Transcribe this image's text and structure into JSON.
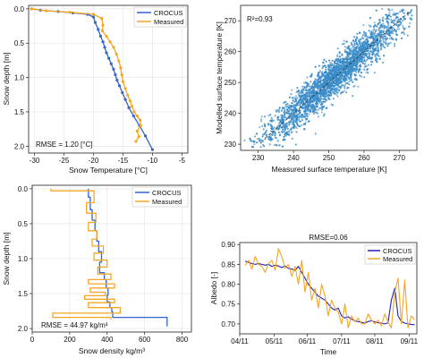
{
  "colors": {
    "crocus": "#3366cc",
    "measured": "#f5a623",
    "scatter": "#3a8cc8",
    "albedo_crocus": "#1f1fb4",
    "albedo_measured": "#f5a623"
  },
  "chart_data": [
    {
      "id": "temp_profile",
      "type": "line",
      "xlabel": "Snow Temperature [°C]",
      "ylabel": "Snow depth [m]",
      "xlim": [
        -31,
        -4
      ],
      "ylim": [
        2.1,
        -0.05
      ],
      "xticks": [
        -30,
        -25,
        -20,
        -15,
        -10,
        -5
      ],
      "yticks": [
        0.0,
        0.5,
        1.0,
        1.5,
        2.0
      ],
      "ytick_labels": [
        "0.0",
        "0.5",
        "1.0",
        "1.5",
        "2.0"
      ],
      "legend": [
        "CROCUS",
        "Measured"
      ],
      "legend_position": "top-right",
      "annotation": "RMSE = 1.20 [°C]",
      "series": [
        {
          "name": "CROCUS",
          "x": [
            -30.5,
            -29,
            -26,
            -23.5,
            -21,
            -20,
            -19.7,
            -19.2,
            -18.8,
            -18.4,
            -18.1,
            -17.8,
            -17.4,
            -17.0,
            -16.6,
            -16.3,
            -16.0,
            -15.6,
            -15.1,
            -14.6,
            -14.0,
            -13.2,
            -12.2,
            -11.2,
            -10.0
          ],
          "y": [
            0.0,
            0.02,
            0.04,
            0.06,
            0.08,
            0.12,
            0.2,
            0.3,
            0.4,
            0.48,
            0.56,
            0.64,
            0.72,
            0.8,
            0.88,
            0.96,
            1.04,
            1.12,
            1.22,
            1.32,
            1.44,
            1.56,
            1.7,
            1.85,
            2.05
          ],
          "markers": true
        },
        {
          "name": "Measured",
          "x": [
            -30.5,
            -28,
            -24,
            -20,
            -18.6,
            -18.4,
            -18.5,
            -17.8,
            -17.2,
            -16.6,
            -16.1,
            -15.7,
            -15.4,
            -15.2,
            -15.0,
            -14.6,
            -14.2,
            -13.8,
            -13.5,
            -13.1,
            -12.6,
            -12.1,
            -12.0,
            -12.6,
            -12.3,
            -12.8
          ],
          "y": [
            0.0,
            0.03,
            0.05,
            0.08,
            0.14,
            0.24,
            0.32,
            0.4,
            0.48,
            0.56,
            0.66,
            0.76,
            0.86,
            0.96,
            1.06,
            1.16,
            1.26,
            1.34,
            1.42,
            1.5,
            1.56,
            1.62,
            1.7,
            1.78,
            1.86,
            1.93
          ],
          "markers": true
        }
      ]
    },
    {
      "id": "surface_scatter",
      "type": "scatter",
      "xlabel": "Measured surface temperature [K]",
      "ylabel": "Modelled surface temperature [K]",
      "xlim": [
        225,
        275
      ],
      "ylim": [
        228,
        275
      ],
      "xticks": [
        230,
        240,
        250,
        260,
        270
      ],
      "yticks": [
        230,
        240,
        250,
        260,
        270
      ],
      "annotation": "R²=0.93",
      "one_to_one_line": true,
      "point_cloud": {
        "n_points": 2600,
        "x_mean": 252,
        "x_sd": 10,
        "scatter_sd": 3.2
      }
    },
    {
      "id": "density_profile",
      "type": "line",
      "xlabel": "Snow density kg/m³",
      "ylabel": "Snow depth [m]",
      "xlim": [
        0,
        850
      ],
      "ylim": [
        2.05,
        -0.05
      ],
      "xticks": [
        0,
        200,
        400,
        600,
        800
      ],
      "yticks": [
        0.0,
        0.5,
        1.0,
        1.5,
        2.0
      ],
      "ytick_labels": [
        "0.0",
        "0.5",
        "1.0",
        "1.5",
        "2.0"
      ],
      "legend": [
        "CROCUS",
        "Measured"
      ],
      "legend_position": "top-right",
      "annotation": "RMSE = 44.97 kg/m³",
      "series": [
        {
          "name": "CROCUS",
          "x": [
            300,
            300,
            310,
            310,
            320,
            320,
            335,
            335,
            345,
            345,
            355,
            355,
            370,
            370,
            360,
            360,
            385,
            385,
            395,
            395,
            405,
            405,
            400,
            400,
            415,
            415,
            425,
            425,
            430,
            430,
            720,
            720
          ],
          "y": [
            0.0,
            0.12,
            0.12,
            0.3,
            0.3,
            0.45,
            0.45,
            0.6,
            0.6,
            0.75,
            0.75,
            0.9,
            0.9,
            1.05,
            1.05,
            1.2,
            1.2,
            1.3,
            1.3,
            1.42,
            1.42,
            1.52,
            1.52,
            1.62,
            1.62,
            1.7,
            1.7,
            1.76,
            1.76,
            1.84,
            1.84,
            1.97
          ]
        },
        {
          "name": "Measured",
          "x": [
            100,
            100,
            330,
            330,
            290,
            290,
            340,
            340,
            300,
            300,
            345,
            345,
            320,
            320,
            380,
            380,
            330,
            330,
            400,
            400,
            350,
            350,
            420,
            420,
            300,
            300,
            440,
            440,
            310,
            310,
            390,
            390,
            280,
            280,
            440,
            440,
            300,
            300,
            470,
            470,
            110,
            110,
            420,
            420
          ],
          "y": [
            0.0,
            0.03,
            0.03,
            0.2,
            0.2,
            0.35,
            0.35,
            0.48,
            0.48,
            0.6,
            0.6,
            0.72,
            0.72,
            0.82,
            0.82,
            0.92,
            0.92,
            1.02,
            1.02,
            1.12,
            1.12,
            1.22,
            1.22,
            1.3,
            1.3,
            1.36,
            1.36,
            1.42,
            1.42,
            1.48,
            1.48,
            1.53,
            1.53,
            1.58,
            1.58,
            1.63,
            1.63,
            1.7,
            1.7,
            1.78,
            1.78,
            1.84,
            1.84,
            1.87
          ]
        }
      ]
    },
    {
      "id": "albedo_timeseries",
      "type": "line",
      "title": "RMSE=0.06",
      "xlabel": "Time",
      "ylabel": "Albedo [-]",
      "xlim": [
        0,
        160
      ],
      "ylim": [
        0.675,
        0.905
      ],
      "xticks": [
        0,
        31,
        61,
        92,
        122,
        153
      ],
      "xtick_labels": [
        "04/11",
        "05/11",
        "06/11",
        "07/11",
        "08/11",
        "09/11"
      ],
      "yticks": [
        0.7,
        0.75,
        0.8,
        0.85,
        0.9
      ],
      "ytick_labels": [
        "0.70",
        "0.75",
        "0.80",
        "0.85",
        "0.90"
      ],
      "legend": [
        "CROCUS",
        "Measured"
      ],
      "legend_position": "top-right",
      "series": [
        {
          "name": "CROCUS",
          "x": [
            5,
            8,
            11,
            14,
            17,
            20,
            23,
            26,
            29,
            32,
            35,
            38,
            41,
            44,
            47,
            50,
            53,
            56,
            59,
            62,
            65,
            68,
            71,
            74,
            77,
            80,
            83,
            86,
            89,
            92,
            95,
            98,
            101,
            104,
            107,
            110,
            113,
            116,
            119,
            122,
            125,
            128,
            131,
            134,
            137,
            140,
            143,
            146,
            149,
            152,
            155,
            158
          ],
          "y": [
            0.858,
            0.855,
            0.852,
            0.85,
            0.852,
            0.85,
            0.848,
            0.85,
            0.845,
            0.848,
            0.846,
            0.842,
            0.846,
            0.84,
            0.838,
            0.835,
            0.845,
            0.83,
            0.815,
            0.8,
            0.79,
            0.78,
            0.77,
            0.765,
            0.76,
            0.75,
            0.74,
            0.735,
            0.74,
            0.72,
            0.715,
            0.718,
            0.712,
            0.708,
            0.706,
            0.704,
            0.702,
            0.706,
            0.708,
            0.705,
            0.703,
            0.702,
            0.7,
            0.703,
            0.76,
            0.79,
            0.72,
            0.706,
            0.702,
            0.7,
            0.699,
            0.698
          ]
        },
        {
          "name": "Measured",
          "x": [
            5,
            8,
            11,
            14,
            17,
            20,
            23,
            26,
            29,
            32,
            35,
            38,
            41,
            44,
            47,
            50,
            53,
            56,
            59,
            62,
            65,
            68,
            71,
            74,
            77,
            80,
            83,
            86,
            89,
            92,
            95,
            98,
            101,
            104,
            107,
            110,
            113,
            116,
            119,
            122,
            125,
            128,
            131,
            134,
            137,
            140,
            143,
            146,
            149,
            152,
            155,
            158
          ],
          "y": [
            0.848,
            0.86,
            0.838,
            0.87,
            0.85,
            0.845,
            0.83,
            0.852,
            0.86,
            0.835,
            0.89,
            0.87,
            0.84,
            0.85,
            0.82,
            0.845,
            0.8,
            0.86,
            0.78,
            0.83,
            0.76,
            0.79,
            0.74,
            0.8,
            0.77,
            0.72,
            0.76,
            0.74,
            0.73,
            0.7,
            0.75,
            0.69,
            0.72,
            0.705,
            0.715,
            0.7,
            0.7,
            0.725,
            0.71,
            0.7,
            0.71,
            0.695,
            0.725,
            0.705,
            0.69,
            0.78,
            0.815,
            0.7,
            0.81,
            0.69,
            0.72,
            0.71
          ]
        }
      ]
    }
  ]
}
